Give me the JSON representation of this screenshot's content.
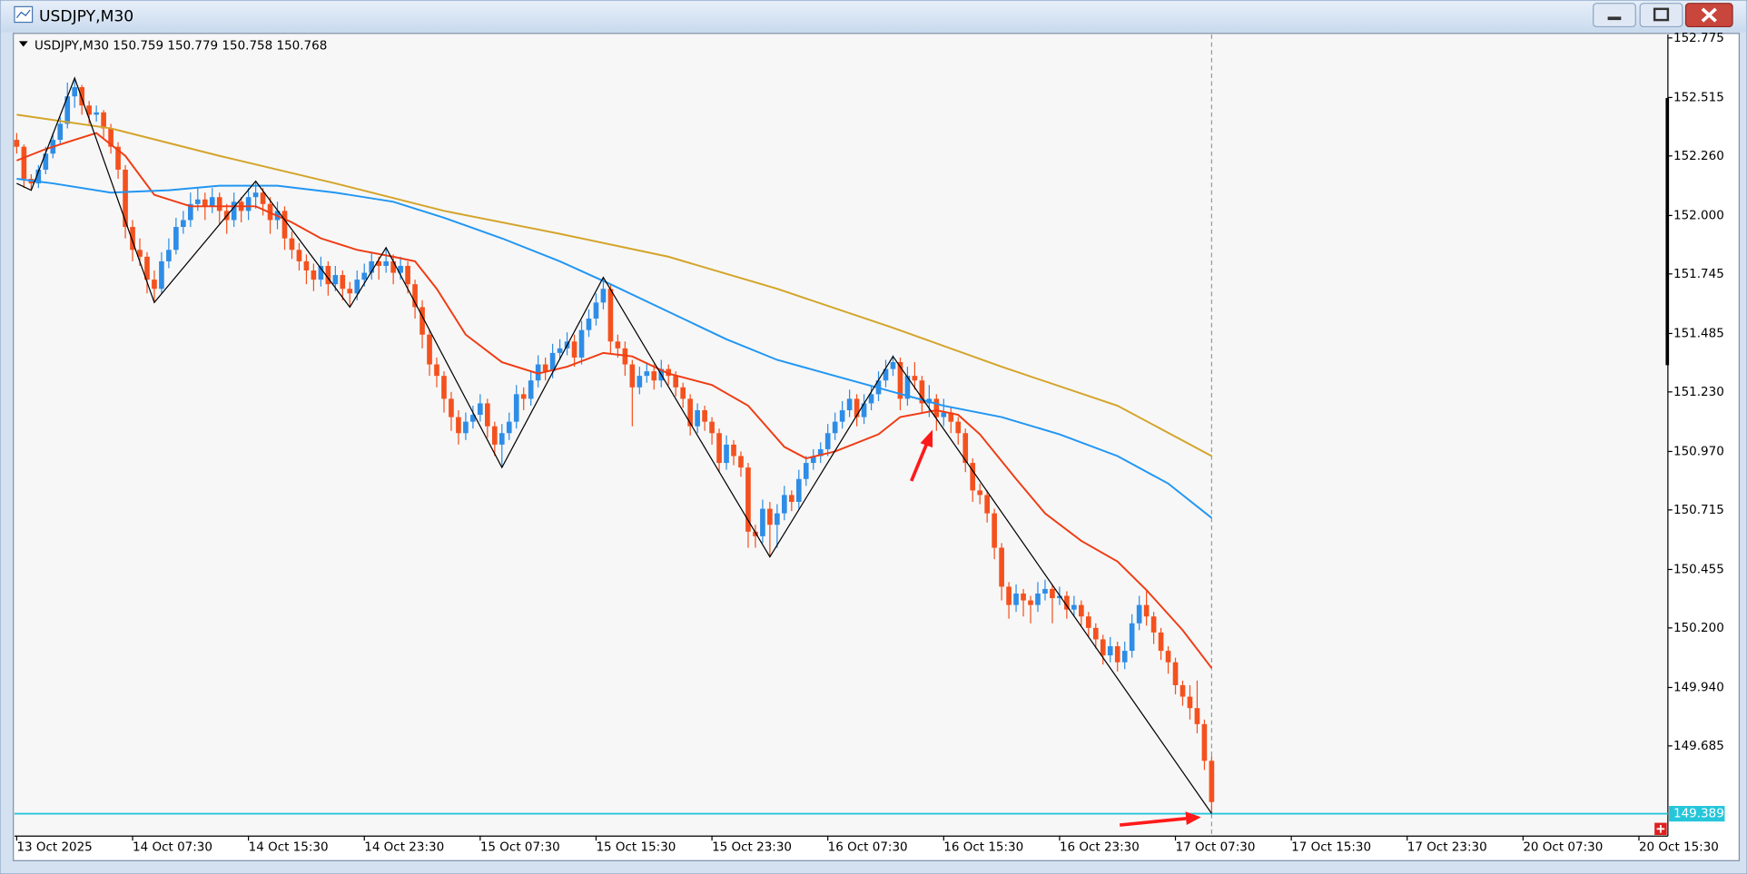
{
  "window_title": "USDJPY,M30",
  "chart_data": {
    "type": "candlestick",
    "symbol": "USDJPY,M30",
    "quote": [
      150.759,
      150.779,
      150.758,
      150.768
    ],
    "up_color": "#2e8de6",
    "down_color": "#f4511e",
    "ylim": [
      149.296,
      152.785
    ],
    "yticks": [
      {
        "value": 152.775,
        "label": "152.775"
      },
      {
        "value": 152.515,
        "label": "152.515"
      },
      {
        "value": 152.26,
        "label": "152.260"
      },
      {
        "value": 152,
        "label": "152.000"
      },
      {
        "value": 151.745,
        "label": "151.745"
      },
      {
        "value": 151.485,
        "label": "151.485"
      },
      {
        "value": 151.23,
        "label": "151.230"
      },
      {
        "value": 150.97,
        "label": "150.970"
      },
      {
        "value": 150.715,
        "label": "150.715"
      },
      {
        "value": 150.455,
        "label": "150.455"
      },
      {
        "value": 150.2,
        "label": "150.200"
      },
      {
        "value": 149.94,
        "label": "149.940"
      },
      {
        "value": 149.685,
        "label": "149.685"
      }
    ],
    "xticks": [
      {
        "value": 0,
        "label": "13 Oct 2025"
      },
      {
        "value": 16,
        "label": "14 Oct 07:30"
      },
      {
        "value": 32,
        "label": "14 Oct 15:30"
      },
      {
        "value": 48,
        "label": "14 Oct 23:30"
      },
      {
        "value": 64,
        "label": "15 Oct 07:30"
      },
      {
        "value": 80,
        "label": "15 Oct 15:30"
      },
      {
        "value": 96,
        "label": "15 Oct 23:30"
      },
      {
        "value": 112,
        "label": "16 Oct 07:30"
      },
      {
        "value": 128,
        "label": "16 Oct 15:30"
      },
      {
        "value": 144,
        "label": "16 Oct 23:30"
      },
      {
        "value": 160,
        "label": "17 Oct 07:30"
      },
      {
        "value": 176,
        "label": "17 Oct 15:30"
      },
      {
        "value": 192,
        "label": "17 Oct 23:30"
      },
      {
        "value": 208,
        "label": "20 Oct 07:30"
      },
      {
        "value": 224,
        "label": "20 Oct 15:30"
      }
    ],
    "bid": 149.389,
    "bid_color": "#26c6da",
    "ohlc": [
      [
        152.33,
        152.36,
        152.27,
        152.3
      ],
      [
        152.3,
        152.31,
        152.12,
        152.16
      ],
      [
        152.16,
        152.18,
        152.11,
        152.14
      ],
      [
        152.14,
        152.22,
        152.12,
        152.2
      ],
      [
        152.2,
        152.3,
        152.18,
        152.27
      ],
      [
        152.27,
        152.36,
        152.25,
        152.33
      ],
      [
        152.33,
        152.43,
        152.31,
        152.4
      ],
      [
        152.4,
        152.58,
        152.38,
        152.52
      ],
      [
        152.52,
        152.6,
        152.47,
        152.56
      ],
      [
        152.56,
        152.57,
        152.44,
        152.48
      ],
      [
        152.48,
        152.5,
        152.4,
        152.44
      ],
      [
        152.44,
        152.48,
        152.41,
        152.45
      ],
      [
        152.45,
        152.46,
        152.34,
        152.38
      ],
      [
        152.38,
        152.4,
        152.27,
        152.3
      ],
      [
        152.3,
        152.32,
        152.16,
        152.2
      ],
      [
        152.2,
        152.22,
        151.9,
        151.95
      ],
      [
        151.95,
        151.98,
        151.8,
        151.85
      ],
      [
        151.85,
        151.9,
        151.78,
        151.82
      ],
      [
        151.82,
        151.84,
        151.66,
        151.72
      ],
      [
        151.72,
        151.76,
        151.62,
        151.68
      ],
      [
        151.68,
        151.84,
        151.66,
        151.8
      ],
      [
        151.8,
        151.9,
        151.77,
        151.85
      ],
      [
        151.85,
        151.99,
        151.83,
        151.95
      ],
      [
        151.95,
        152.02,
        151.92,
        151.98
      ],
      [
        151.98,
        152.1,
        151.95,
        152.05
      ],
      [
        152.05,
        152.12,
        152.02,
        152.07
      ],
      [
        152.07,
        152.1,
        151.98,
        152.04
      ],
      [
        152.04,
        152.12,
        152.01,
        152.08
      ],
      [
        152.08,
        152.1,
        151.96,
        152.02
      ],
      [
        152.02,
        152.05,
        151.92,
        151.98
      ],
      [
        151.98,
        152.1,
        151.95,
        152.06
      ],
      [
        152.06,
        152.08,
        151.97,
        152.02
      ],
      [
        152.02,
        152.12,
        151.98,
        152.08
      ],
      [
        152.08,
        152.15,
        152.03,
        152.1
      ],
      [
        152.1,
        152.12,
        152.0,
        152.05
      ],
      [
        152.05,
        152.08,
        151.92,
        151.98
      ],
      [
        151.98,
        152.06,
        151.94,
        152.02
      ],
      [
        152.02,
        152.04,
        151.85,
        151.9
      ],
      [
        151.9,
        151.93,
        151.81,
        151.85
      ],
      [
        151.85,
        151.88,
        151.76,
        151.8
      ],
      [
        151.8,
        151.83,
        151.7,
        151.76
      ],
      [
        151.76,
        151.79,
        151.67,
        151.72
      ],
      [
        151.72,
        151.82,
        151.69,
        151.78
      ],
      [
        151.78,
        151.8,
        151.65,
        151.7
      ],
      [
        151.7,
        151.78,
        151.67,
        151.74
      ],
      [
        151.74,
        151.76,
        151.63,
        151.68
      ],
      [
        151.68,
        151.71,
        151.6,
        151.66
      ],
      [
        151.66,
        151.76,
        151.63,
        151.72
      ],
      [
        151.72,
        151.79,
        151.69,
        151.75
      ],
      [
        151.75,
        151.84,
        151.72,
        151.8
      ],
      [
        151.8,
        151.82,
        151.72,
        151.78
      ],
      [
        151.78,
        151.86,
        151.75,
        151.8
      ],
      [
        151.8,
        151.83,
        151.7,
        151.75
      ],
      [
        151.75,
        151.82,
        151.72,
        151.78
      ],
      [
        151.78,
        151.8,
        151.66,
        151.7
      ],
      [
        151.7,
        151.72,
        151.55,
        151.6
      ],
      [
        151.6,
        151.63,
        151.42,
        151.48
      ],
      [
        151.48,
        151.5,
        151.3,
        151.35
      ],
      [
        151.35,
        151.38,
        151.25,
        151.3
      ],
      [
        151.3,
        151.32,
        151.14,
        151.2
      ],
      [
        151.2,
        151.23,
        151.06,
        151.12
      ],
      [
        151.12,
        151.15,
        151.0,
        151.05
      ],
      [
        151.05,
        151.14,
        151.02,
        151.1
      ],
      [
        151.1,
        151.17,
        151.07,
        151.13
      ],
      [
        151.13,
        151.22,
        151.1,
        151.18
      ],
      [
        151.18,
        151.2,
        151.03,
        151.08
      ],
      [
        151.08,
        151.1,
        150.95,
        151.0
      ],
      [
        151.0,
        151.09,
        150.9,
        151.05
      ],
      [
        151.05,
        151.14,
        151.02,
        151.1
      ],
      [
        151.1,
        151.26,
        151.07,
        151.22
      ],
      [
        151.22,
        151.25,
        151.15,
        151.2
      ],
      [
        151.2,
        151.32,
        151.17,
        151.28
      ],
      [
        151.28,
        151.39,
        151.25,
        151.35
      ],
      [
        151.35,
        151.38,
        151.28,
        151.32
      ],
      [
        151.32,
        151.44,
        151.29,
        151.4
      ],
      [
        151.4,
        151.46,
        151.37,
        151.42
      ],
      [
        151.42,
        151.49,
        151.39,
        151.45
      ],
      [
        151.45,
        151.48,
        151.34,
        151.38
      ],
      [
        151.38,
        151.54,
        151.35,
        151.5
      ],
      [
        151.5,
        151.59,
        151.47,
        151.55
      ],
      [
        151.55,
        151.66,
        151.52,
        151.62
      ],
      [
        151.62,
        151.73,
        151.59,
        151.68
      ],
      [
        151.68,
        151.7,
        151.4,
        151.45
      ],
      [
        151.45,
        151.48,
        151.38,
        151.42
      ],
      [
        151.42,
        151.45,
        151.3,
        151.35
      ],
      [
        151.35,
        151.37,
        151.08,
        151.25
      ],
      [
        151.25,
        151.34,
        151.22,
        151.3
      ],
      [
        151.3,
        151.36,
        151.27,
        151.32
      ],
      [
        151.32,
        151.35,
        151.24,
        151.28
      ],
      [
        151.28,
        151.37,
        151.25,
        151.33
      ],
      [
        151.33,
        151.35,
        151.26,
        151.3
      ],
      [
        151.3,
        151.32,
        151.21,
        151.25
      ],
      [
        151.25,
        151.27,
        151.16,
        151.2
      ],
      [
        151.2,
        151.22,
        151.04,
        151.08
      ],
      [
        151.08,
        151.18,
        151.05,
        151.15
      ],
      [
        151.15,
        151.17,
        151.06,
        151.1
      ],
      [
        151.1,
        151.12,
        151.0,
        151.05
      ],
      [
        151.05,
        151.07,
        150.88,
        150.92
      ],
      [
        150.92,
        151.04,
        150.89,
        151.0
      ],
      [
        151.0,
        151.02,
        150.91,
        150.95
      ],
      [
        150.95,
        150.97,
        150.86,
        150.9
      ],
      [
        150.9,
        150.92,
        150.55,
        150.62
      ],
      [
        150.62,
        150.65,
        150.55,
        150.6
      ],
      [
        150.6,
        150.76,
        150.57,
        150.72
      ],
      [
        150.72,
        150.75,
        150.51,
        150.65
      ],
      [
        150.65,
        150.74,
        150.55,
        150.7
      ],
      [
        150.7,
        150.82,
        150.67,
        150.78
      ],
      [
        150.78,
        150.8,
        150.71,
        150.75
      ],
      [
        150.75,
        150.89,
        150.72,
        150.85
      ],
      [
        150.85,
        150.95,
        150.82,
        150.92
      ],
      [
        150.92,
        150.98,
        150.89,
        150.95
      ],
      [
        150.95,
        151.01,
        150.92,
        150.98
      ],
      [
        150.98,
        151.09,
        150.95,
        151.05
      ],
      [
        151.05,
        151.14,
        151.02,
        151.1
      ],
      [
        151.1,
        151.19,
        151.07,
        151.15
      ],
      [
        151.15,
        151.24,
        151.12,
        151.2
      ],
      [
        151.2,
        151.22,
        151.08,
        151.12
      ],
      [
        151.12,
        151.22,
        151.09,
        151.18
      ],
      [
        151.18,
        151.26,
        151.15,
        151.22
      ],
      [
        151.22,
        151.32,
        151.19,
        151.28
      ],
      [
        151.28,
        151.37,
        151.25,
        151.33
      ],
      [
        151.33,
        151.39,
        151.3,
        151.36
      ],
      [
        151.36,
        151.38,
        151.15,
        151.2
      ],
      [
        151.2,
        151.34,
        151.17,
        151.3
      ],
      [
        151.3,
        151.36,
        151.24,
        151.28
      ],
      [
        151.28,
        151.3,
        151.14,
        151.18
      ],
      [
        151.18,
        151.26,
        151.12,
        151.2
      ],
      [
        151.2,
        151.22,
        151.06,
        151.12
      ],
      [
        151.12,
        151.2,
        151.08,
        151.14
      ],
      [
        151.14,
        151.16,
        151.05,
        151.1
      ],
      [
        151.1,
        151.12,
        151.0,
        151.05
      ],
      [
        151.05,
        151.07,
        150.88,
        150.92
      ],
      [
        150.92,
        150.94,
        150.75,
        150.8
      ],
      [
        150.8,
        150.83,
        150.74,
        150.78
      ],
      [
        150.78,
        150.8,
        150.66,
        150.7
      ],
      [
        150.7,
        150.72,
        150.5,
        150.55
      ],
      [
        150.55,
        150.57,
        150.32,
        150.38
      ],
      [
        150.38,
        150.4,
        150.24,
        150.3
      ],
      [
        150.3,
        150.39,
        150.27,
        150.35
      ],
      [
        150.35,
        150.37,
        150.25,
        150.32
      ],
      [
        150.32,
        150.34,
        150.22,
        150.3
      ],
      [
        150.3,
        150.4,
        150.27,
        150.35
      ],
      [
        150.35,
        150.41,
        150.32,
        150.37
      ],
      [
        150.37,
        150.39,
        150.22,
        150.33
      ],
      [
        150.33,
        150.38,
        150.3,
        150.34
      ],
      [
        150.34,
        150.36,
        150.24,
        150.28
      ],
      [
        150.28,
        150.34,
        150.25,
        150.3
      ],
      [
        150.3,
        150.32,
        150.21,
        150.25
      ],
      [
        150.25,
        150.27,
        150.16,
        150.2
      ],
      [
        150.2,
        150.22,
        150.11,
        150.15
      ],
      [
        150.15,
        150.17,
        150.04,
        150.08
      ],
      [
        150.08,
        150.16,
        150.05,
        150.12
      ],
      [
        150.12,
        150.14,
        150.01,
        150.05
      ],
      [
        150.05,
        150.14,
        150.02,
        150.1
      ],
      [
        150.1,
        150.26,
        150.07,
        150.22
      ],
      [
        150.22,
        150.34,
        150.19,
        150.3
      ],
      [
        150.3,
        150.36,
        150.21,
        150.25
      ],
      [
        150.25,
        150.27,
        150.13,
        150.18
      ],
      [
        150.18,
        150.2,
        150.06,
        150.1
      ],
      [
        150.1,
        150.12,
        150.0,
        150.05
      ],
      [
        150.05,
        150.07,
        149.91,
        149.95
      ],
      [
        149.95,
        149.97,
        149.86,
        149.9
      ],
      [
        149.9,
        149.95,
        149.8,
        149.85
      ],
      [
        149.85,
        149.97,
        149.74,
        149.78
      ],
      [
        149.78,
        149.8,
        149.58,
        149.62
      ],
      [
        149.62,
        149.64,
        149.39,
        149.44
      ]
    ],
    "lines": [
      {
        "color": "#f03c14",
        "x": [
          0,
          4,
          8,
          11,
          15,
          19,
          24,
          28,
          33,
          38,
          42,
          47,
          52,
          55,
          58,
          62,
          67,
          72,
          76,
          81,
          85,
          90,
          96,
          101,
          106,
          109,
          113,
          119,
          122,
          127,
          130,
          133,
          138,
          142,
          147,
          152,
          156,
          161,
          165
        ],
        "values": [
          152.24,
          152.29,
          152.33,
          152.36,
          152.26,
          152.09,
          152.04,
          152.04,
          152.04,
          151.97,
          151.9,
          151.85,
          151.82,
          151.8,
          151.68,
          151.48,
          151.36,
          151.31,
          151.34,
          151.4,
          151.385,
          151.31,
          151.26,
          151.17,
          150.99,
          150.94,
          150.97,
          151.045,
          151.12,
          151.15,
          151.13,
          151.045,
          150.85,
          150.7,
          150.58,
          150.49,
          150.365,
          150.19,
          150.025
        ]
      },
      {
        "color": "#2196f3",
        "x": [
          0,
          5,
          13,
          21,
          28,
          36,
          44,
          52,
          59,
          67,
          75,
          82,
          90,
          98,
          105,
          113,
          121,
          128,
          136,
          144,
          152,
          159,
          165
        ],
        "values": [
          152.16,
          152.14,
          152.1,
          152.11,
          152.13,
          152.13,
          152.1,
          152.06,
          151.99,
          151.9,
          151.8,
          151.7,
          151.58,
          151.46,
          151.37,
          151.3,
          151.23,
          151.17,
          151.12,
          151.045,
          150.95,
          150.83,
          150.68
        ]
      },
      {
        "color": "#d4a42a",
        "x": [
          0,
          13,
          28,
          44,
          59,
          75,
          90,
          105,
          121,
          136,
          152,
          165
        ],
        "values": [
          152.44,
          152.38,
          152.26,
          152.14,
          152.02,
          151.92,
          151.82,
          151.68,
          151.51,
          151.34,
          151.17,
          150.95
        ]
      },
      {
        "color": "#000000",
        "x": [
          0,
          2,
          8,
          19,
          33,
          46,
          51,
          67,
          81,
          104,
          121,
          165
        ],
        "values": [
          152.14,
          152.11,
          152.6,
          151.62,
          152.15,
          151.6,
          151.86,
          150.9,
          151.73,
          150.51,
          151.385,
          149.39
        ]
      }
    ]
  }
}
